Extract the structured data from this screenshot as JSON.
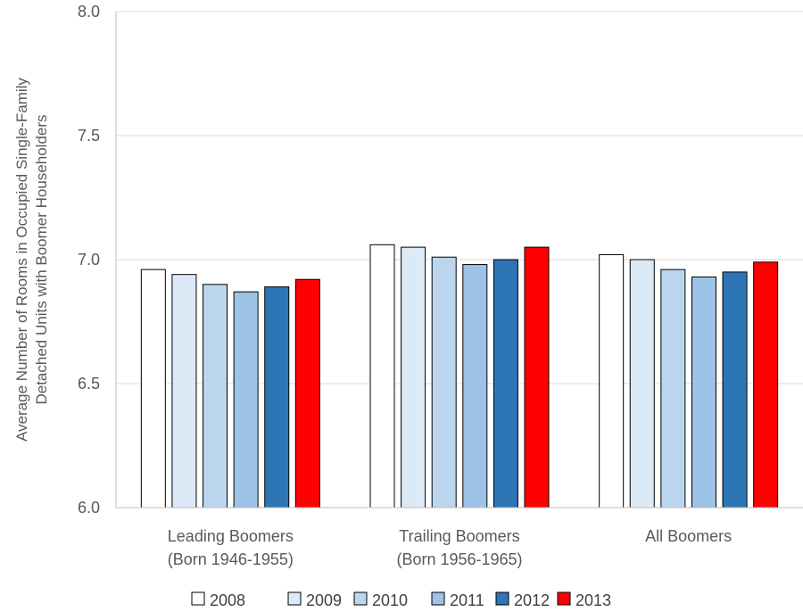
{
  "chart_data": {
    "type": "bar",
    "categories": [
      [
        "Leading Boomers",
        "(Born 1946-1955)"
      ],
      [
        "Trailing Boomers",
        "(Born 1956-1965)"
      ],
      [
        "All Boomers"
      ]
    ],
    "series": [
      {
        "name": "2008",
        "color": "#ffffff",
        "values": [
          6.96,
          7.06,
          7.02
        ]
      },
      {
        "name": "2009",
        "color": "#dce9f6",
        "values": [
          6.94,
          7.05,
          7.0
        ]
      },
      {
        "name": "2010",
        "color": "#bcd5ee",
        "values": [
          6.9,
          7.01,
          6.96
        ]
      },
      {
        "name": "2011",
        "color": "#9dc3e6",
        "values": [
          6.87,
          6.98,
          6.93
        ]
      },
      {
        "name": "2012",
        "color": "#2e75b6",
        "values": [
          6.89,
          7.0,
          6.95
        ]
      },
      {
        "name": "2013",
        "color": "#ff0000",
        "values": [
          6.92,
          7.05,
          6.99
        ]
      }
    ],
    "ylabel": [
      "Average Number of Rooms in Occupied Single-Family",
      "Detached Units with Boomer Householders"
    ],
    "ylim": [
      6.0,
      8.0
    ],
    "yticks": [
      "6.0",
      "6.5",
      "7.0",
      "7.5",
      "8.0"
    ],
    "ytick_values": [
      6.0,
      6.5,
      7.0,
      7.5,
      8.0
    ],
    "grid": true,
    "legend_position": "bottom"
  }
}
